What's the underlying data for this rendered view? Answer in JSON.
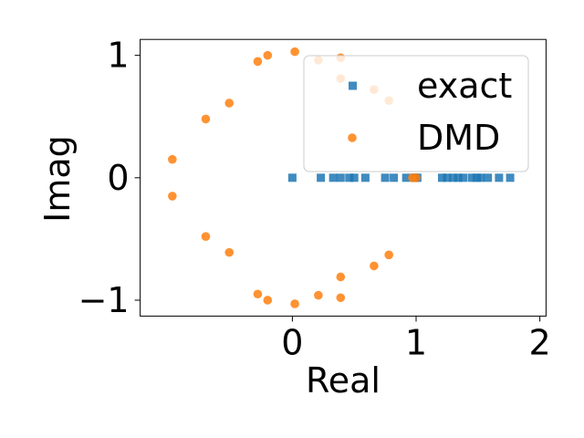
{
  "chart_data": {
    "type": "scatter",
    "title": "",
    "xlabel": "Real",
    "ylabel": "Imag",
    "xlim": [
      -1.23,
      2.05
    ],
    "ylim": [
      -1.13,
      1.13
    ],
    "xticks": [
      0,
      1,
      2
    ],
    "yticks": [
      -1,
      0,
      1
    ],
    "xtick_labels": [
      "0",
      "1",
      "2"
    ],
    "ytick_labels": [
      "−1",
      "0",
      "1"
    ],
    "grid": false,
    "legend": {
      "placement": "upper-right",
      "entries": [
        "exact",
        "DMD"
      ]
    },
    "series": [
      {
        "name": "exact",
        "marker": "square",
        "color": "#1f77b4",
        "points": [
          [
            0.0,
            0.0
          ],
          [
            0.23,
            0.0
          ],
          [
            0.33,
            0.0
          ],
          [
            0.39,
            0.0
          ],
          [
            0.46,
            0.0
          ],
          [
            0.5,
            0.0
          ],
          [
            0.59,
            0.0
          ],
          [
            0.75,
            0.0
          ],
          [
            0.82,
            0.0
          ],
          [
            0.92,
            0.0
          ],
          [
            0.99,
            0.0
          ],
          [
            1.01,
            0.0
          ],
          [
            1.21,
            0.0
          ],
          [
            1.25,
            0.0
          ],
          [
            1.3,
            0.0
          ],
          [
            1.34,
            0.0
          ],
          [
            1.38,
            0.0
          ],
          [
            1.45,
            0.0
          ],
          [
            1.49,
            0.0
          ],
          [
            1.52,
            0.0
          ],
          [
            1.58,
            0.0
          ],
          [
            1.67,
            0.0
          ],
          [
            1.76,
            0.0
          ]
        ]
      },
      {
        "name": "DMD",
        "marker": "circle",
        "color": "#ff7f0e",
        "points": [
          [
            0.02,
            1.03
          ],
          [
            0.21,
            0.96
          ],
          [
            0.39,
            0.98
          ],
          [
            0.39,
            0.81
          ],
          [
            0.66,
            0.72
          ],
          [
            0.78,
            0.63
          ],
          [
            -0.28,
            0.95
          ],
          [
            -0.2,
            1.0
          ],
          [
            -0.51,
            0.61
          ],
          [
            -0.7,
            0.48
          ],
          [
            -0.97,
            0.15
          ],
          [
            -0.97,
            -0.15
          ],
          [
            -0.7,
            -0.48
          ],
          [
            -0.51,
            -0.61
          ],
          [
            -0.28,
            -0.95
          ],
          [
            -0.2,
            -1.0
          ],
          [
            0.02,
            -1.03
          ],
          [
            0.21,
            -0.96
          ],
          [
            0.39,
            -0.98
          ],
          [
            0.39,
            -0.81
          ],
          [
            0.66,
            -0.72
          ],
          [
            0.78,
            -0.63
          ],
          [
            0.97,
            0.0
          ],
          [
            1.0,
            0.0
          ]
        ]
      }
    ]
  }
}
